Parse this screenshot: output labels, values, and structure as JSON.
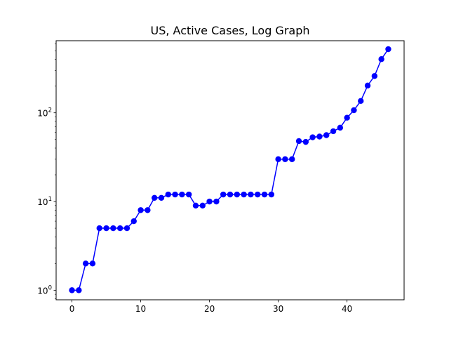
{
  "chart_data": {
    "type": "line",
    "title": "US, Active Cases, Log Graph",
    "xlabel": "",
    "ylabel": "",
    "yscale": "log",
    "xlim": [
      -2.3,
      48.3
    ],
    "ylim": [
      0.78,
      650
    ],
    "grid": false,
    "x_ticks": [
      0,
      10,
      20,
      30,
      40
    ],
    "y_ticks": [
      {
        "value": 1,
        "base": "10",
        "exp": "0"
      },
      {
        "value": 10,
        "base": "10",
        "exp": "1"
      },
      {
        "value": 100,
        "base": "10",
        "exp": "2"
      }
    ],
    "series": [
      {
        "color": "#0000ff",
        "marker": "circle",
        "x": [
          0,
          1,
          2,
          3,
          4,
          5,
          6,
          7,
          8,
          9,
          10,
          11,
          12,
          13,
          14,
          15,
          16,
          17,
          18,
          19,
          20,
          21,
          22,
          23,
          24,
          25,
          26,
          27,
          28,
          29,
          30,
          31,
          32,
          33,
          34,
          35,
          36,
          37,
          38,
          39,
          40,
          41,
          42,
          43,
          44,
          45,
          46
        ],
        "values": [
          1,
          1,
          2,
          2,
          5,
          5,
          5,
          5,
          5,
          6,
          8,
          8,
          11,
          11,
          12,
          12,
          12,
          12,
          9,
          9,
          10,
          10,
          12,
          12,
          12,
          12,
          12,
          12,
          12,
          12,
          30,
          30,
          30,
          48,
          47,
          53,
          54,
          56,
          62,
          68,
          88,
          107,
          136,
          203,
          260,
          403,
          522
        ]
      }
    ]
  }
}
